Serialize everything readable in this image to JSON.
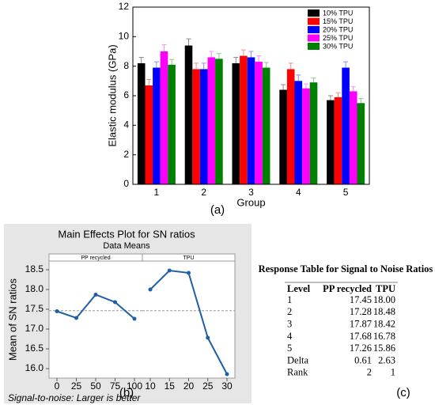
{
  "chart_data": [
    {
      "type": "bar",
      "xlabel": "Group",
      "ylabel": "Elastic modulus (GPa)",
      "categories": [
        "1",
        "2",
        "3",
        "4",
        "5"
      ],
      "ylim": [
        0,
        12
      ],
      "yticks": [
        0,
        2,
        4,
        6,
        8,
        10,
        12
      ],
      "legend": "top-right",
      "caption": "(a)",
      "series": [
        {
          "name": "10% TPU",
          "color": "#000000",
          "values": [
            8.2,
            9.4,
            8.2,
            6.4,
            5.7
          ],
          "errors": [
            0.4,
            0.45,
            0.4,
            0.35,
            0.3
          ]
        },
        {
          "name": "15% TPU",
          "color": "#ff0000",
          "values": [
            6.7,
            7.8,
            8.7,
            7.8,
            5.9
          ],
          "errors": [
            0.4,
            0.4,
            0.4,
            0.4,
            0.3
          ]
        },
        {
          "name": "20% TPU",
          "color": "#0000ff",
          "values": [
            7.9,
            7.8,
            8.6,
            7.0,
            7.9
          ],
          "errors": [
            0.4,
            0.4,
            0.4,
            0.4,
            0.4
          ]
        },
        {
          "name": "25% TPU",
          "color": "#ff00ff",
          "values": [
            9.0,
            8.6,
            8.3,
            6.5,
            6.3
          ],
          "errors": [
            0.45,
            0.4,
            0.4,
            0.3,
            0.3
          ]
        },
        {
          "name": "30% TPU",
          "color": "#008000",
          "values": [
            8.1,
            8.5,
            7.9,
            6.9,
            5.5
          ],
          "errors": [
            0.35,
            0.35,
            0.35,
            0.3,
            0.3
          ]
        }
      ]
    },
    {
      "type": "main-effects",
      "title": "Main Effects Plot for SN ratios",
      "subtitle": "Data Means",
      "ylabel": "Mean of SN ratios",
      "note": "Signal-to-noise: Larger is better",
      "caption": "(b)",
      "ylim": [
        15.76,
        18.72
      ],
      "yticks": [
        {
          "value": 16,
          "label": "16.0"
        },
        16.5,
        {
          "value": 17,
          "label": "17.0"
        },
        17.5,
        {
          "value": 18,
          "label": "18.0"
        },
        18.5
      ],
      "reference_line": 17.465,
      "color": "#1f5fa8",
      "panels": [
        {
          "name": "PP recycled",
          "categories": [
            "0",
            "25",
            "50",
            "75",
            "100"
          ],
          "values": [
            17.45,
            17.28,
            17.87,
            17.68,
            17.26
          ]
        },
        {
          "name": "TPU",
          "categories": [
            "10",
            "15",
            "20",
            "25",
            "30"
          ],
          "values": [
            18.0,
            18.48,
            18.42,
            16.78,
            15.86
          ]
        }
      ]
    }
  ],
  "table": {
    "title": "Response Table for Signal to Noise Ratios",
    "caption": "(c)",
    "header": [
      "Level",
      "PP recycled",
      "TPU"
    ],
    "rows": [
      [
        "1",
        "17.45",
        "18.00"
      ],
      [
        "2",
        "17.28",
        "18.48"
      ],
      [
        "3",
        "17.87",
        "18.42"
      ],
      [
        "4",
        "17.68",
        "16.78"
      ],
      [
        "5",
        "17.26",
        "15.86"
      ],
      [
        "Delta",
        "0.61",
        "2.63"
      ],
      [
        "Rank",
        "2",
        "1"
      ]
    ]
  }
}
